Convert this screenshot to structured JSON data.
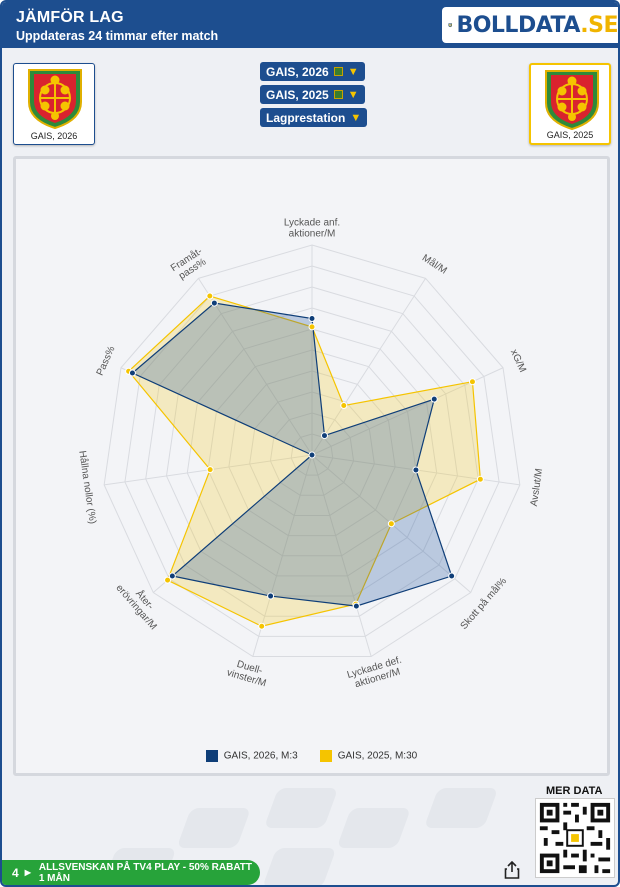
{
  "header": {
    "title": "JÄMFÖR LAG",
    "subtitle": "Uppdateras 24 timmar efter match",
    "brand": "BOLLDATA",
    "brand_suffix": ".SE"
  },
  "teams": {
    "left_caption": "GAIS, 2026",
    "right_caption": "GAIS, 2025"
  },
  "selectors": [
    {
      "label": "GAIS, 2026"
    },
    {
      "label": "GAIS, 2025"
    },
    {
      "label": "Lagprestation"
    }
  ],
  "colors": {
    "brand_blue": "#1d4e8f",
    "series_2026": "#0f3e78",
    "series_2025": "#f5c400",
    "promo_green": "#27a33a"
  },
  "chart_data": {
    "type": "radar",
    "axes": [
      "Lyckade anf. aktioner/M",
      "Mål/M",
      "xG/M",
      "Avslut/M",
      "Skott på mål%",
      "Lyckade def. aktioner/M",
      "Duell-vinster/M",
      "Åter-erövringar/M",
      "Hållna nollor (%)",
      "Pass%",
      "Framåt-pass%"
    ],
    "axis_label_lines": [
      [
        "Lyckade anf.",
        "aktioner/M"
      ],
      [
        "Mål/M"
      ],
      [
        "xG/M"
      ],
      [
        "Avslut/M"
      ],
      [
        "Skott på mål%"
      ],
      [
        "Lyckade def.",
        "aktioner/M"
      ],
      [
        "Duell-",
        "vinster/M"
      ],
      [
        "Åter-",
        "erövringar/M"
      ],
      [
        "Hållna nollor (%)"
      ],
      [
        "Pass%"
      ],
      [
        "Framåt-",
        "pass%"
      ]
    ],
    "scale": [
      0,
      10
    ],
    "rings": 10,
    "series": [
      {
        "name": "GAIS, 2026, M:3",
        "values": [
          6.5,
          1.1,
          6.4,
          5.0,
          8.8,
          7.5,
          7.0,
          8.8,
          0.0,
          9.4,
          8.6
        ]
      },
      {
        "name": "GAIS, 2025, M:30",
        "values": [
          6.1,
          2.8,
          8.4,
          8.1,
          5.0,
          7.4,
          8.5,
          9.1,
          4.9,
          9.6,
          9.0
        ]
      }
    ]
  },
  "footer": {
    "mer_data": "MER DATA",
    "promo_number": "4",
    "promo_text": "ALLSVENSKAN PÅ TV4 PLAY - 50% RABATT 1 MÅN"
  }
}
